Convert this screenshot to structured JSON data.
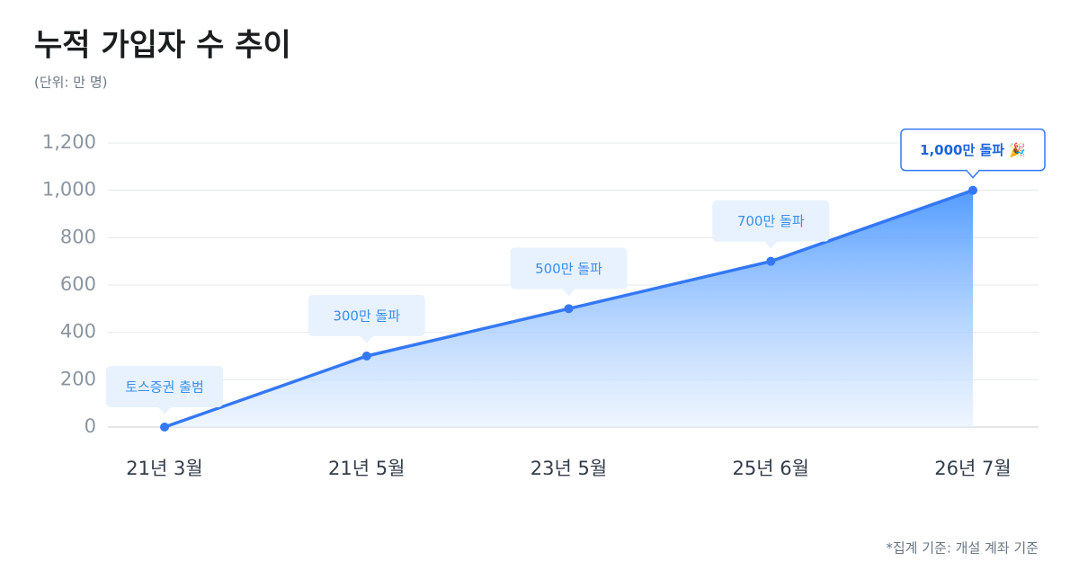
{
  "chart_data": {
    "type": "area",
    "title": "누적 가입자 수 추이",
    "subtitle": "(단위: 만 명)",
    "footnote": "*집계 기준: 개설 계좌 기준",
    "categories": [
      "21년 3월",
      "21년 5월",
      "23년 5월",
      "25년 6월",
      "26년 7월"
    ],
    "values": [
      0,
      300,
      500,
      700,
      1000
    ],
    "annotations": [
      "토스증권 출범",
      "300만 돌파",
      "500만 돌파",
      "700만 돌파",
      "1,000만 돌파 🎉"
    ],
    "color": "#3478f6",
    "ylim": [
      0,
      1200
    ],
    "yticks": [
      0,
      200,
      400,
      600,
      800,
      {
        "value": 1000,
        "label": "1,000"
      },
      {
        "value": 1200,
        "label": "1,200"
      }
    ],
    "grid": true
  }
}
